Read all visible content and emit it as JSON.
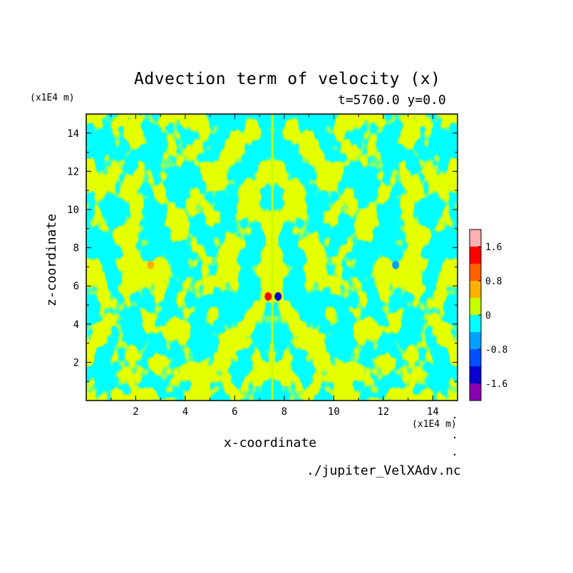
{
  "chart_data": {
    "type": "heatmap",
    "title": "Advection term of velocity (x)",
    "subtitle": "t=5760.0 y=0.0",
    "xlabel": "x-coordinate",
    "ylabel": "z-coordinate",
    "x_unit": "(x1E4 m)",
    "y_unit": "(x1E4 m)",
    "xlim": [
      0,
      15
    ],
    "ylim": [
      0,
      15
    ],
    "x_ticks": [
      "2",
      "4",
      "6",
      "8",
      "10",
      "12",
      "14"
    ],
    "y_ticks": [
      "2",
      "4",
      "6",
      "8",
      "10",
      "12",
      "14"
    ],
    "colorbar": {
      "levels": [
        -2.0,
        -1.6,
        -1.2,
        -0.8,
        -0.4,
        0,
        0.4,
        0.8,
        1.2,
        1.6,
        2.0
      ],
      "labels": [
        "-1.6",
        "-0.8",
        "0",
        "0.8",
        "1.6"
      ],
      "colors": [
        "#8a00b0",
        "#0a00d0",
        "#0050ff",
        "#00a0ff",
        "#00ffff",
        "#c8ff00",
        "#ffb000",
        "#ff6000",
        "#ff0000",
        "#ffb0b0"
      ]
    },
    "background_color": "#00ffff",
    "features": [
      {
        "x": 7.35,
        "z": 5.45,
        "value": 1.4
      },
      {
        "x": 7.75,
        "z": 5.45,
        "value": -1.4
      },
      {
        "x": 2.6,
        "z": 7.1,
        "value": 0.6
      },
      {
        "x": 12.5,
        "z": 7.1,
        "value": -0.6
      }
    ]
  },
  "source_file": "./jupiter_VelXAdv.nc"
}
